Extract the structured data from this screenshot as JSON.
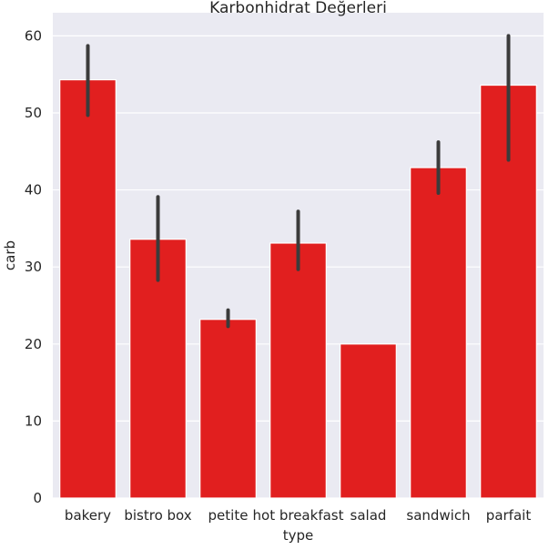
{
  "chart_data": {
    "type": "bar",
    "title": "Karbonhidrat Değerleri",
    "xlabel": "type",
    "ylabel": "carb",
    "categories": [
      "bakery",
      "bistro box",
      "petite",
      "hot breakfast",
      "salad",
      "sandwich",
      "parfait"
    ],
    "values": [
      54.3,
      33.6,
      23.2,
      33.1,
      20.0,
      42.9,
      53.6
    ],
    "error_bars": [
      {
        "low": 49.7,
        "high": 58.7
      },
      {
        "low": 28.3,
        "high": 39.1
      },
      {
        "low": 22.3,
        "high": 24.4
      },
      {
        "low": 29.7,
        "high": 37.2
      },
      null,
      {
        "low": 39.6,
        "high": 46.2
      },
      {
        "low": 43.9,
        "high": 60.0
      }
    ],
    "ylim": [
      0,
      63
    ],
    "yticks": [
      0,
      10,
      20,
      30,
      40,
      50,
      60
    ],
    "grid": true,
    "bar_color": "#e11f1f",
    "error_color": "#3b3b3b",
    "background_color": "#eaeaf2"
  }
}
